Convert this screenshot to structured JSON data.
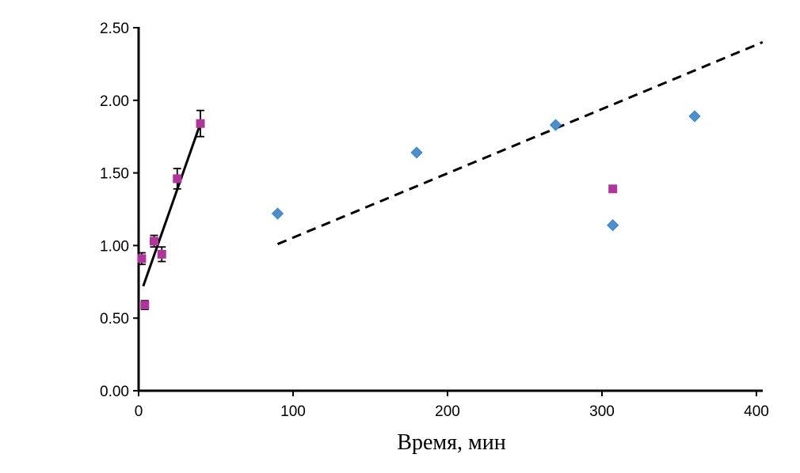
{
  "chart_data": {
    "type": "scatter",
    "title": "",
    "xlabel": "Время, мин",
    "ylabel": "",
    "xlim": [
      0,
      400
    ],
    "ylim": [
      0,
      2.5
    ],
    "x_ticks": [
      "0",
      "100",
      "200",
      "300",
      "400"
    ],
    "y_ticks": [
      "0.00",
      "0.50",
      "1.00",
      "1.50",
      "2.00",
      "2.50"
    ],
    "grid": false,
    "legend": "none",
    "colors": {
      "diamond": "#4a90d0",
      "square": "#b0359a",
      "line": "#000000"
    },
    "series": [
      {
        "marker": "square",
        "points": [
          {
            "x": 2,
            "y": 0.91,
            "err": 0.04
          },
          {
            "x": 4,
            "y": 0.59,
            "err": 0.03
          },
          {
            "x": 10,
            "y": 1.03,
            "err": 0.04
          },
          {
            "x": 15,
            "y": 0.94,
            "err": 0.05
          },
          {
            "x": 25,
            "y": 1.46,
            "err": 0.07
          },
          {
            "x": 40,
            "y": 1.84,
            "err": 0.09
          },
          {
            "x": 307,
            "y": 1.39,
            "err": 0
          }
        ]
      },
      {
        "marker": "diamond",
        "points": [
          {
            "x": 90,
            "y": 1.22
          },
          {
            "x": 180,
            "y": 1.64
          },
          {
            "x": 270,
            "y": 1.83
          },
          {
            "x": 307,
            "y": 1.14
          },
          {
            "x": 360,
            "y": 1.89
          }
        ]
      }
    ],
    "trendlines": [
      {
        "style": "solid",
        "from": [
          3,
          0.72
        ],
        "to": [
          40,
          1.84
        ]
      },
      {
        "style": "dashed",
        "from": [
          90,
          1.01
        ],
        "to": [
          404,
          2.4
        ]
      }
    ]
  }
}
